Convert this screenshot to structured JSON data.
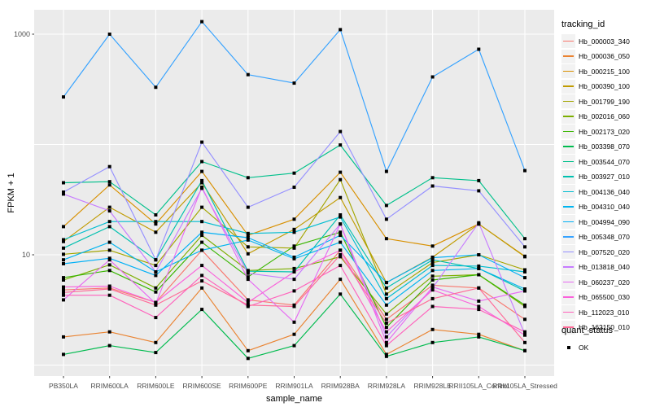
{
  "figure": {
    "y_axis_title": "FPKM + 1",
    "x_axis_title": "sample_name"
  },
  "chart_data": {
    "type": "line",
    "title": "",
    "xlabel": "sample_name",
    "ylabel": "FPKM + 1",
    "y_scale": "log10",
    "ylim": [
      0.8,
      1700
    ],
    "y_tick_values": [
      10,
      1000
    ],
    "y_tick_labels": [
      "10",
      "1000"
    ],
    "major_gridline_values": [
      1,
      10,
      100,
      1000
    ],
    "grid": "on",
    "panel_bg": "#EBEBEB",
    "gridline_color": "#FFFFFF",
    "tick_text_color": "#4D4D4D",
    "point_marker": {
      "shape": "square",
      "color": "#000000",
      "size": 4
    },
    "legend_position": "right",
    "categories": [
      "PB350LA",
      "RRIM600LA",
      "RRIM600LE",
      "RRIM600SE",
      "RRIM600PE",
      "RRIM901LA",
      "RRIM928BA",
      "RRIM928LA",
      "RRIM928LE",
      "RRII105LA_Control",
      "RRII105LA_Stressed"
    ],
    "legend": {
      "title": "tracking_id"
    },
    "legend2": {
      "title": "quant_status",
      "items": [
        {
          "label": "OK",
          "marker": "black-square"
        }
      ]
    },
    "series": [
      {
        "name": "Hb_000003_340",
        "color": "#F8766D",
        "values": [
          4.8,
          5.0,
          3.7,
          11,
          3.9,
          3.5,
          11,
          2.6,
          5.3,
          5.0,
          2.6
        ]
      },
      {
        "name": "Hb_000036_050",
        "color": "#EA8331",
        "values": [
          1.8,
          2.0,
          1.6,
          5.0,
          1.35,
          1.9,
          6.0,
          1.25,
          2.1,
          1.9,
          1.35
        ]
      },
      {
        "name": "Hb_000215_100",
        "color": "#D89000",
        "values": [
          18,
          43,
          19,
          57,
          15,
          21,
          56,
          14,
          12,
          19,
          9.7
        ]
      },
      {
        "name": "Hb_000390_100",
        "color": "#C09B00",
        "values": [
          13.2,
          27,
          16,
          45,
          10.2,
          17,
          33,
          5.6,
          9.5,
          19,
          9.6
        ]
      },
      {
        "name": "Hb_001799_190",
        "color": "#A3A500",
        "values": [
          10.1,
          11,
          8.0,
          27,
          11.8,
          11.5,
          48,
          4.4,
          8.5,
          10,
          7.3
        ]
      },
      {
        "name": "Hb_002016_060",
        "color": "#7CAE00",
        "values": [
          5.9,
          8.1,
          5.0,
          15,
          7.2,
          7.5,
          9.6,
          2.9,
          6.4,
          6.6,
          3.4
        ]
      },
      {
        "name": "Hb_002173_020",
        "color": "#39B600",
        "values": [
          6.2,
          7.2,
          4.6,
          13,
          6.3,
          12,
          16,
          2.2,
          5.9,
          6.6,
          3.5
        ]
      },
      {
        "name": "Hb_003398_070",
        "color": "#00BB4E",
        "values": [
          1.25,
          1.5,
          1.3,
          3.2,
          1.15,
          1.5,
          4.4,
          1.2,
          1.6,
          1.8,
          1.35
        ]
      },
      {
        "name": "Hb_003544_070",
        "color": "#00C08B",
        "values": [
          45,
          46,
          23,
          70,
          50,
          55,
          99,
          28,
          50,
          47,
          14
        ]
      },
      {
        "name": "Hb_003927_010",
        "color": "#00C0AF",
        "values": [
          11.5,
          18,
          9.0,
          47,
          7.1,
          7.0,
          23,
          5.0,
          9.0,
          7.5,
          4.7
        ]
      },
      {
        "name": "Hb_004136_040",
        "color": "#00BDD0",
        "values": [
          13.7,
          20,
          20,
          20,
          15.6,
          16,
          22,
          4.0,
          8.0,
          7.9,
          7.0
        ]
      },
      {
        "name": "Hb_004310_040",
        "color": "#00B4EF",
        "values": [
          9.0,
          13,
          7.0,
          11,
          13.6,
          9.2,
          13,
          3.5,
          7.2,
          7.5,
          4.9
        ]
      },
      {
        "name": "Hb_004994_090",
        "color": "#00B0F6",
        "values": [
          8.3,
          9.3,
          6.5,
          16,
          14.3,
          9.5,
          15,
          5.6,
          9.4,
          10,
          6.2
        ]
      },
      {
        "name": "Hb_005348_070",
        "color": "#35A2FF",
        "values": [
          270,
          1000,
          330,
          1300,
          430,
          360,
          1100,
          57,
          410,
          730,
          58
        ]
      },
      {
        "name": "Hb_007520_020",
        "color": "#9590FF",
        "values": [
          37,
          63,
          9.0,
          105,
          27,
          41,
          131,
          21,
          42,
          38,
          11.8
        ]
      },
      {
        "name": "Hb_013818_040",
        "color": "#C77CFF",
        "values": [
          35.5,
          25,
          7.0,
          40,
          6.8,
          6.0,
          19,
          1.8,
          5.0,
          19.5,
          1.9
        ]
      },
      {
        "name": "Hb_060237_020",
        "color": "#E76BF3",
        "values": [
          3.9,
          9.0,
          3.6,
          41,
          6.0,
          2.45,
          19,
          1.6,
          5.1,
          3.8,
          4.7
        ]
      },
      {
        "name": "Hb_065500_030",
        "color": "#FA62DB",
        "values": [
          5.1,
          5.2,
          3.7,
          8.0,
          3.7,
          7.0,
          11,
          2.0,
          4.8,
          3.4,
          1.87
        ]
      },
      {
        "name": "Hb_112023_010",
        "color": "#FF62BC",
        "values": [
          4.3,
          4.3,
          2.7,
          6.5,
          3.4,
          4.7,
          8.0,
          1.5,
          3.4,
          3.2,
          2.0
        ]
      },
      {
        "name": "Hb_162150_010",
        "color": "#FF6A98",
        "values": [
          4.55,
          4.9,
          3.5,
          5.8,
          3.5,
          3.4,
          10,
          2.4,
          4.0,
          5.0,
          1.6
        ]
      }
    ]
  }
}
